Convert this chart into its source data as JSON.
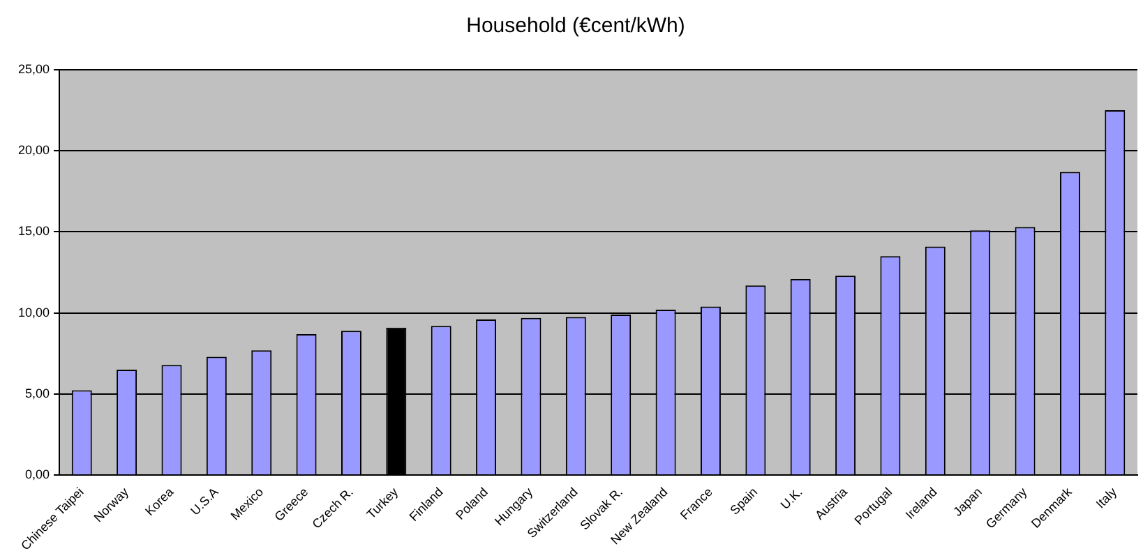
{
  "chart_data": {
    "type": "bar",
    "title": "Household (€cent/kWh)",
    "categories": [
      "Chinese Taipei",
      "Norway",
      "Korea",
      "U.S.A",
      "Mexico",
      "Greece",
      "Czech R.",
      "Turkey",
      "Finland",
      "Poland",
      "Hungary",
      "Switzerland",
      "Slovak R.",
      "New Zealand",
      "France",
      "Spain",
      "U.K.",
      "Austria",
      "Portugal",
      "Ireland",
      "Japan",
      "Germany",
      "Denmark",
      "Italy"
    ],
    "values": [
      5.24,
      6.5,
      6.8,
      7.3,
      7.7,
      8.7,
      8.9,
      9.1,
      9.2,
      9.6,
      9.7,
      9.75,
      9.9,
      10.2,
      10.4,
      11.7,
      12.1,
      12.3,
      13.5,
      14.1,
      15.1,
      15.3,
      18.7,
      22.5
    ],
    "colors": [
      "#9999ff",
      "#9999ff",
      "#9999ff",
      "#9999ff",
      "#9999ff",
      "#9999ff",
      "#9999ff",
      "#000000",
      "#9999ff",
      "#9999ff",
      "#9999ff",
      "#9999ff",
      "#9999ff",
      "#9999ff",
      "#9999ff",
      "#9999ff",
      "#9999ff",
      "#9999ff",
      "#9999ff",
      "#9999ff",
      "#9999ff",
      "#9999ff",
      "#9999ff",
      "#9999ff"
    ],
    "ylim": [
      0,
      25
    ],
    "yticks": [
      {
        "value": 0,
        "label": "0,00"
      },
      {
        "value": 5,
        "label": "5,00"
      },
      {
        "value": 10,
        "label": "10,00"
      },
      {
        "value": 15,
        "label": "15,00"
      },
      {
        "value": 20,
        "label": "20,00"
      },
      {
        "value": 25,
        "label": "25,00"
      }
    ],
    "grid": "y",
    "legend": false
  }
}
